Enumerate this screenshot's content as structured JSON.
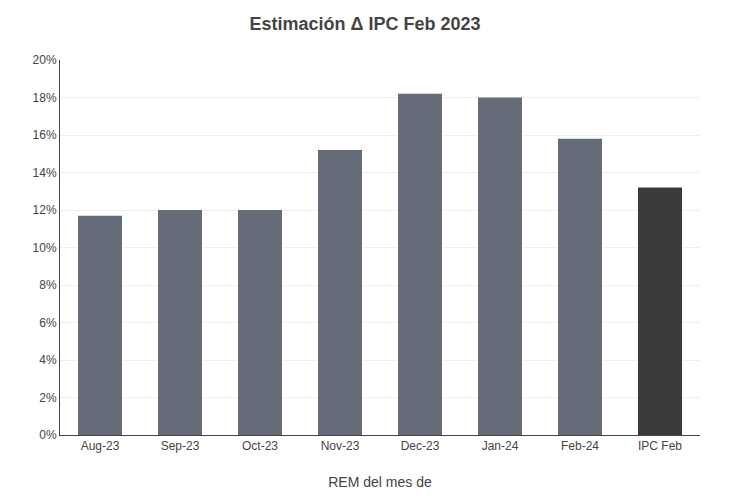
{
  "chart_data": {
    "type": "bar",
    "title": "Estimación Δ IPC Feb 2023",
    "categories": [
      "Aug-23",
      "Sep-23",
      "Oct-23",
      "Nov-23",
      "Dec-23",
      "Jan-24",
      "Feb-24",
      "IPC Feb"
    ],
    "values": [
      11.7,
      12.0,
      12.0,
      15.2,
      18.2,
      18.0,
      15.8,
      13.2
    ],
    "colors": [
      "#646c7a",
      "#646c7a",
      "#646c7a",
      "#646c7a",
      "#646c7a",
      "#646c7a",
      "#646c7a",
      "#3a3a3a"
    ],
    "xlabel": "REM del mes de",
    "ylim": [
      0,
      20
    ],
    "yticks": [
      {
        "value": 0,
        "label": "0%"
      },
      {
        "value": 2,
        "label": "2%"
      },
      {
        "value": 4,
        "label": "4%"
      },
      {
        "value": 6,
        "label": "6%"
      },
      {
        "value": 8,
        "label": "8%"
      },
      {
        "value": 10,
        "label": "10%"
      },
      {
        "value": 12,
        "label": "12%"
      },
      {
        "value": 14,
        "label": "14%"
      },
      {
        "value": 16,
        "label": "16%"
      },
      {
        "value": 18,
        "label": "18%"
      },
      {
        "value": 20,
        "label": "20%"
      }
    ],
    "grid": true
  }
}
